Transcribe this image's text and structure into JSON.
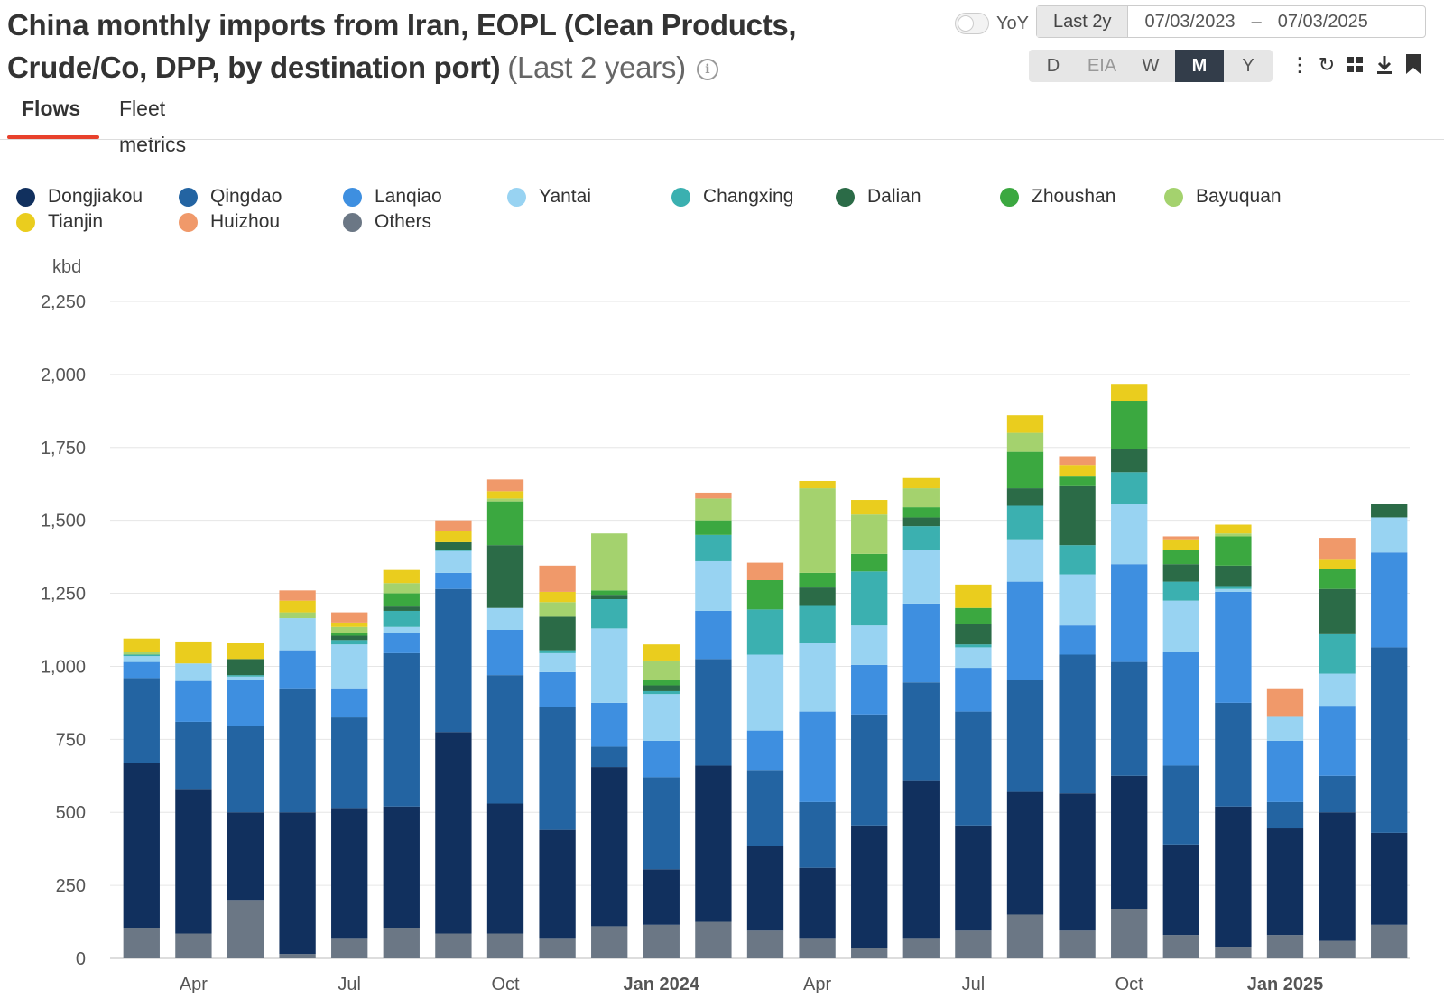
{
  "header": {
    "title": "China monthly imports from Iran, EOPL (Clean Products, Crude/Co, DPP, by destination port)",
    "range_label": "(Last 2 years)",
    "info_icon": "info-icon"
  },
  "tabs": [
    {
      "label": "Flows",
      "active": true
    },
    {
      "label": "Fleet metrics",
      "active": false
    }
  ],
  "controls": {
    "yoy_label": "YoY",
    "yoy_enabled": false,
    "range_button": "Last 2y",
    "date_from": "07/03/2023",
    "date_sep": "–",
    "date_to": "07/03/2025",
    "periods": [
      {
        "label": "D",
        "state": "normal"
      },
      {
        "label": "EIA",
        "state": "disabled"
      },
      {
        "label": "W",
        "state": "normal"
      },
      {
        "label": "M",
        "state": "selected"
      },
      {
        "label": "Y",
        "state": "normal"
      }
    ],
    "toolbar_icons": [
      "more-vertical-icon",
      "refresh-icon",
      "grid-icon",
      "download-icon",
      "bookmark-icon"
    ]
  },
  "chart_data": {
    "type": "bar",
    "stacked": true,
    "title": "China monthly imports from Iran, EOPL (Clean Products, Crude/Co, DPP, by destination port)",
    "ylabel": "kbd",
    "ylim": [
      0,
      2250
    ],
    "yticks": [
      0,
      250,
      500,
      750,
      1000,
      1250,
      1500,
      1750,
      2000,
      2250
    ],
    "ytick_labels": [
      "0",
      "250",
      "500",
      "750",
      "1,000",
      "1,250",
      "1,500",
      "1,750",
      "2,000",
      "2,250"
    ],
    "x_labels": [
      {
        "index": 1,
        "label": "Apr",
        "bold": false
      },
      {
        "index": 4,
        "label": "Jul",
        "bold": false
      },
      {
        "index": 7,
        "label": "Oct",
        "bold": false
      },
      {
        "index": 10,
        "label": "Jan 2024",
        "bold": true
      },
      {
        "index": 13,
        "label": "Apr",
        "bold": false
      },
      {
        "index": 16,
        "label": "Jul",
        "bold": false
      },
      {
        "index": 19,
        "label": "Oct",
        "bold": false
      },
      {
        "index": 22,
        "label": "Jan 2025",
        "bold": true
      }
    ],
    "categories": [
      "Mar 2023",
      "Apr 2023",
      "May 2023",
      "Jun 2023",
      "Jul 2023",
      "Aug 2023",
      "Sep 2023",
      "Oct 2023",
      "Nov 2023",
      "Dec 2023",
      "Jan 2024",
      "Feb 2024",
      "Mar 2024",
      "Apr 2024",
      "May 2024",
      "Jun 2024",
      "Jul 2024",
      "Aug 2024",
      "Sep 2024",
      "Oct 2024",
      "Nov 2024",
      "Dec 2024",
      "Jan 2025",
      "Feb 2025",
      "Mar 2025"
    ],
    "grid": true,
    "legend_position": "top",
    "series": [
      {
        "name": "Others",
        "color": "#6b7785",
        "values": [
          105,
          85,
          200,
          15,
          70,
          105,
          85,
          85,
          70,
          110,
          115,
          125,
          95,
          70,
          35,
          70,
          95,
          150,
          95,
          170,
          80,
          40,
          80,
          60,
          115
        ]
      },
      {
        "name": "Dongjiakou",
        "color": "#11305e",
        "values": [
          565,
          495,
          300,
          485,
          445,
          415,
          690,
          445,
          370,
          545,
          190,
          535,
          290,
          240,
          420,
          540,
          360,
          420,
          470,
          455,
          310,
          480,
          365,
          440,
          315
        ]
      },
      {
        "name": "Qingdao",
        "color": "#2364a2",
        "values": [
          290,
          230,
          295,
          425,
          310,
          525,
          490,
          440,
          420,
          70,
          315,
          365,
          260,
          225,
          380,
          335,
          390,
          385,
          475,
          390,
          270,
          355,
          90,
          125,
          635
        ]
      },
      {
        "name": "Lanqiao",
        "color": "#3e8fe0",
        "values": [
          55,
          140,
          160,
          130,
          100,
          70,
          55,
          155,
          120,
          150,
          125,
          165,
          135,
          310,
          170,
          270,
          150,
          335,
          100,
          335,
          390,
          380,
          210,
          240,
          325
        ]
      },
      {
        "name": "Yantai",
        "color": "#98d3f2",
        "values": [
          20,
          60,
          10,
          110,
          150,
          20,
          75,
          75,
          65,
          255,
          160,
          170,
          260,
          235,
          135,
          185,
          70,
          145,
          175,
          205,
          175,
          10,
          85,
          110,
          120
        ]
      },
      {
        "name": "Changxing",
        "color": "#3bb0b0",
        "values": [
          5,
          0,
          5,
          0,
          15,
          55,
          5,
          0,
          10,
          100,
          10,
          90,
          155,
          130,
          185,
          80,
          10,
          115,
          100,
          110,
          65,
          10,
          0,
          135,
          0
        ]
      },
      {
        "name": "Dalian",
        "color": "#2b6b47",
        "values": [
          0,
          0,
          55,
          0,
          15,
          15,
          25,
          215,
          115,
          15,
          20,
          0,
          0,
          60,
          0,
          30,
          70,
          60,
          205,
          80,
          60,
          70,
          0,
          155,
          45
        ]
      },
      {
        "name": "Zhoushan",
        "color": "#3ba840",
        "values": [
          0,
          0,
          0,
          0,
          10,
          45,
          0,
          150,
          0,
          15,
          20,
          50,
          100,
          50,
          60,
          35,
          55,
          125,
          30,
          165,
          50,
          100,
          0,
          70,
          0
        ]
      },
      {
        "name": "Bayuquan",
        "color": "#a4d26e",
        "values": [
          10,
          0,
          0,
          20,
          20,
          35,
          0,
          10,
          50,
          195,
          65,
          75,
          0,
          290,
          135,
          65,
          0,
          65,
          0,
          0,
          0,
          10,
          0,
          0,
          0
        ]
      },
      {
        "name": "Tianjin",
        "color": "#eacd1e",
        "values": [
          45,
          75,
          55,
          40,
          15,
          45,
          40,
          25,
          35,
          0,
          55,
          0,
          0,
          25,
          50,
          35,
          80,
          60,
          40,
          55,
          35,
          30,
          0,
          30,
          0
        ]
      },
      {
        "name": "Huizhou",
        "color": "#f0996a",
        "values": [
          0,
          0,
          0,
          35,
          35,
          0,
          35,
          40,
          90,
          0,
          0,
          20,
          60,
          0,
          0,
          0,
          0,
          0,
          30,
          0,
          10,
          0,
          95,
          75,
          0
        ]
      }
    ]
  },
  "legend": {
    "rows": [
      [
        "Dongjiakou",
        "Qingdao",
        "Lanqiao",
        "Yantai",
        "Changxing",
        "Dalian",
        "Zhoushan",
        "Bayuquan"
      ],
      [
        "Tianjin",
        "Huizhou",
        "Others"
      ]
    ]
  }
}
